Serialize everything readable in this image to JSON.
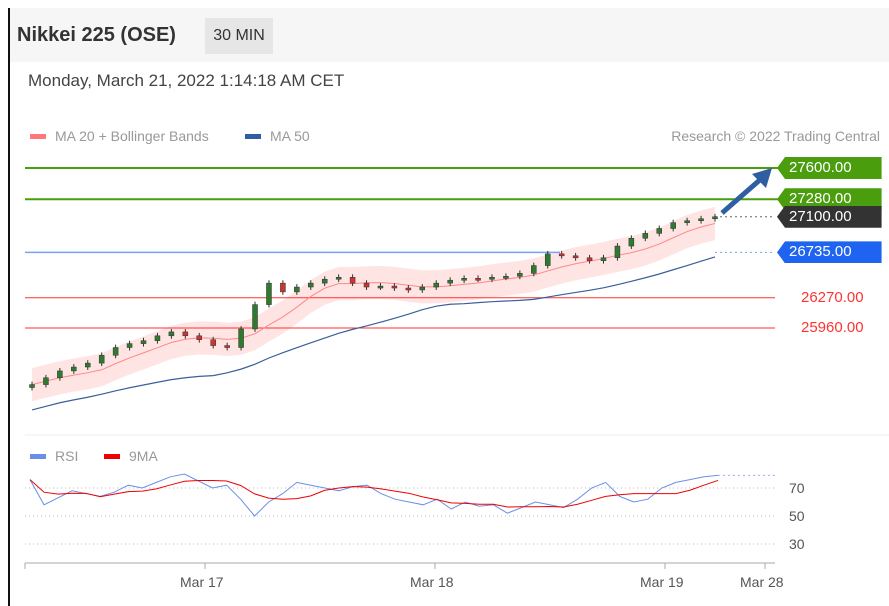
{
  "header": {
    "title": "Nikkei 225 (OSE)",
    "timeframe": "30 MIN"
  },
  "timestamp": "Monday, March 21, 2022 1:14:18 AM CET",
  "legend": {
    "ma20": "MA 20 + Bollinger Bands",
    "ma50": "MA 50",
    "ma20_color": "#f77",
    "ma50_color": "#2e5fa3"
  },
  "credit": "Research © 2022 Trading Central",
  "rsi_legend": {
    "rsi": "RSI",
    "ma": "9MA",
    "rsi_color": "#6b8fe8",
    "ma_color": "#e00"
  },
  "chart_data": {
    "type": "candlestick",
    "closes": [
      25380,
      25450,
      25520,
      25560,
      25600,
      25680,
      25760,
      25800,
      25830,
      25880,
      25920,
      25880,
      25840,
      25780,
      25760,
      25950,
      26200,
      26420,
      26330,
      26380,
      26420,
      26460,
      26480,
      26420,
      26380,
      26390,
      26370,
      26350,
      26380,
      26420,
      26450,
      26470,
      26460,
      26480,
      26490,
      26520,
      26600,
      26720,
      26700,
      26680,
      26650,
      26680,
      26800,
      26880,
      26930,
      26980,
      27040,
      27060,
      27080,
      27100
    ],
    "levels": [
      {
        "value": "27600.00",
        "type": "resistance",
        "color": "#4a9e0e"
      },
      {
        "value": "27280.00",
        "type": "resistance",
        "color": "#4a9e0e"
      },
      {
        "value": "27100.00",
        "type": "last",
        "color": "#333333"
      },
      {
        "value": "26735.00",
        "type": "pivot",
        "color": "#1e64f0"
      },
      {
        "value": "26270.00",
        "type": "support",
        "color": "#ff3333"
      },
      {
        "value": "25960.00",
        "type": "support",
        "color": "#ff3333"
      }
    ],
    "x_ticks": [
      "Mar 17",
      "Mar 18",
      "Mar 19",
      "Mar 28"
    ],
    "rsi": {
      "values": [
        76,
        58,
        63,
        68,
        66,
        64,
        67,
        72,
        70,
        74,
        78,
        80,
        75,
        70,
        72,
        62,
        50,
        60,
        66,
        74,
        72,
        70,
        68,
        71,
        72,
        66,
        62,
        60,
        58,
        62,
        55,
        60,
        57,
        58,
        52,
        56,
        60,
        58,
        56,
        62,
        70,
        74,
        64,
        60,
        62,
        70,
        74,
        76,
        78,
        79
      ],
      "ticks": [
        "70",
        "50",
        "30"
      ],
      "ylim": [
        20,
        90
      ]
    }
  }
}
